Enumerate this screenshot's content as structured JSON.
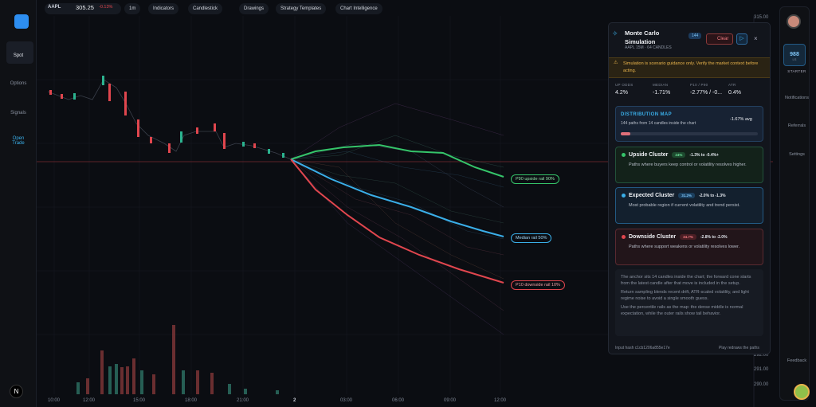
{
  "toolbar": {
    "symbol": "AAPL",
    "price": "305.25",
    "change": "-0.13%",
    "interval": "1m",
    "buttons": [
      "Indicators",
      "Candlestick",
      "Drawings",
      "Strategy Templates",
      "Chart Intelligence"
    ]
  },
  "nav": [
    "Spot",
    "Options",
    "Signals",
    "Open Trade"
  ],
  "price_axis": [
    "315.00",
    "292.00",
    "291.00",
    "290.00"
  ],
  "time_axis": [
    "10:00",
    "12:00",
    "15:00",
    "18:00",
    "21:00",
    "2",
    "03:00",
    "06:00",
    "09:00",
    "12:00"
  ],
  "rails": [
    "P90 upside rail 90%",
    "Median rail 50%",
    "P10 downside rail 10%"
  ],
  "panel": {
    "title": "Monte Carlo Simulation",
    "subtitle": "AAPL 15M · 64 CANDLES",
    "count": "144",
    "clear": "Clear",
    "warning": "Simulation is scenario guidance only. Verify the market context before acting.",
    "stats": [
      {
        "label": "UP ODDS",
        "value": "4.2%"
      },
      {
        "label": "MEDIAN",
        "value": "-1.71%"
      },
      {
        "label": "P10 / P90",
        "value": "-2.77% / -0..."
      },
      {
        "label": "ATR",
        "value": "0.4%"
      }
    ],
    "distribution": {
      "title": "DISTRIBUTION MAP",
      "text": "144 paths from 14 candles inside the chart",
      "avg": "-1.67% avg"
    },
    "clusters": [
      {
        "name": "Upside Cluster",
        "share": "24%",
        "range": "-1.3% to -0.4%+",
        "text": "Paths where buyers keep control or volatility resolves higher."
      },
      {
        "name": "Expected Cluster",
        "share": "31.2%",
        "range": "-2.0% to -1.3%",
        "text": "Most probable region if current volatility and trend persist."
      },
      {
        "name": "Downside Cluster",
        "share": "34.7%",
        "range": "-2.8% to -2.0%",
        "text": "Paths where support weakens or volatility resolves lower."
      }
    ],
    "notes": [
      "The anchor sits 14 candles inside the chart; the forward cone starts from the latest candle after that move is included in the setup.",
      "Return sampling blends recent drift, ATR-scaled volatility, and light regime noise to avoid a single smooth guess.",
      "Use the percentile rails as the map: the dense middle is normal expectation, while the outer rails show tail behavior."
    ],
    "hash": "Input hash c1cb1206a855e17e",
    "redraw": "Play redraws the paths"
  },
  "account": {
    "points": "988",
    "unit": "LS",
    "plan": "STARTER"
  },
  "side": [
    "Notifications",
    "Referrals",
    "Settings",
    "Feedback"
  ]
}
